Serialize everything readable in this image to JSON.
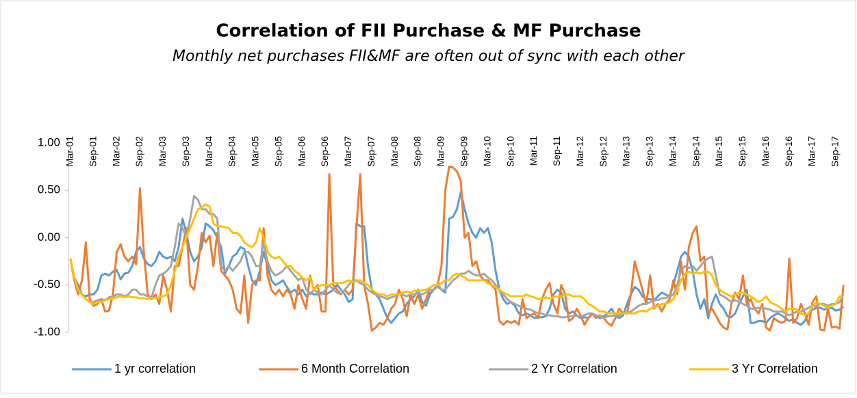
{
  "chart_data": {
    "type": "line",
    "title": "Correlation of FII Purchase & MF Purchase",
    "subtitle": "Monthly net purchases FII&MF are often out of sync with each other",
    "categories": [
      "Mar-01",
      null,
      null,
      null,
      null,
      null,
      "Sep-01",
      null,
      null,
      null,
      null,
      null,
      "Mar-02",
      null,
      null,
      null,
      null,
      null,
      "Sep-02",
      null,
      null,
      null,
      null,
      null,
      "Mar-03",
      null,
      null,
      null,
      null,
      null,
      "Sep-03",
      null,
      null,
      null,
      null,
      null,
      "Mar-04",
      null,
      null,
      null,
      null,
      null,
      "Sep-04",
      null,
      null,
      null,
      null,
      null,
      "Mar-05",
      null,
      null,
      null,
      null,
      null,
      "Sep-05",
      null,
      null,
      null,
      null,
      null,
      "Mar-06",
      null,
      null,
      null,
      null,
      null,
      "Sep-06",
      null,
      null,
      null,
      null,
      null,
      "Mar-07",
      null,
      null,
      null,
      null,
      null,
      "Sep-07",
      null,
      null,
      null,
      null,
      null,
      "Mar-08",
      null,
      null,
      null,
      null,
      null,
      "Sep-08",
      null,
      null,
      null,
      null,
      null,
      "Mar-09",
      null,
      null,
      null,
      null,
      null,
      "Sep-09",
      null,
      null,
      null,
      null,
      null,
      "Mar-10",
      null,
      null,
      null,
      null,
      null,
      "Sep-10",
      null,
      null,
      null,
      null,
      null,
      "Mar-11",
      null,
      null,
      null,
      null,
      null,
      "Sep-11",
      null,
      null,
      null,
      null,
      null,
      "Mar-12",
      null,
      null,
      null,
      null,
      null,
      "Sep-12",
      null,
      null,
      null,
      null,
      null,
      "Mar-13",
      null,
      null,
      null,
      null,
      null,
      "Sep-13",
      null,
      null,
      null,
      null,
      null,
      "Mar-14",
      null,
      null,
      null,
      null,
      null,
      "Sep-14",
      null,
      null,
      null,
      null,
      null,
      "Mar-15",
      null,
      null,
      null,
      null,
      null,
      "Sep-15",
      null,
      null,
      null,
      null,
      null,
      "Mar-16",
      null,
      null,
      null,
      null,
      null,
      "Sep-16",
      null,
      null,
      null,
      null,
      null,
      "Mar-17",
      null,
      null,
      null,
      null,
      null,
      "Sep-17",
      null,
      null
    ],
    "series": [
      {
        "name": "1 yr correlation",
        "color": "#5b9bd5",
        "values": [
          -0.22,
          -0.42,
          -0.5,
          -0.6,
          -0.62,
          -0.6,
          -0.6,
          -0.55,
          -0.4,
          -0.38,
          -0.4,
          -0.36,
          -0.34,
          -0.44,
          -0.38,
          -0.37,
          -0.3,
          -0.15,
          -0.1,
          -0.22,
          -0.28,
          -0.3,
          -0.25,
          -0.15,
          -0.2,
          -0.22,
          -0.2,
          -0.25,
          -0.1,
          0.2,
          0.05,
          -0.15,
          -0.25,
          -0.2,
          -0.1,
          0.15,
          0.12,
          0.08,
          0.0,
          -0.1,
          -0.38,
          -0.3,
          -0.2,
          -0.17,
          -0.1,
          -0.12,
          -0.3,
          -0.45,
          -0.5,
          -0.35,
          -0.15,
          -0.3,
          -0.45,
          -0.5,
          -0.48,
          -0.45,
          -0.52,
          -0.58,
          -0.55,
          -0.6,
          -0.55,
          -0.62,
          -0.58,
          -0.6,
          -0.6,
          -0.58,
          -0.6,
          -0.58,
          -0.55,
          -0.5,
          -0.55,
          -0.6,
          -0.68,
          -0.65,
          0.15,
          0.12,
          0.12,
          -0.3,
          -0.55,
          -0.6,
          -0.65,
          -0.75,
          -0.85,
          -0.9,
          -0.85,
          -0.8,
          -0.78,
          -0.7,
          -0.65,
          -0.62,
          -0.55,
          -0.68,
          -0.72,
          -0.6,
          -0.55,
          -0.5,
          -0.55,
          -0.58,
          0.2,
          0.22,
          0.3,
          0.48,
          0.3,
          0.15,
          0.05,
          0.0,
          0.1,
          0.05,
          0.1,
          -0.05,
          -0.35,
          -0.55,
          -0.65,
          -0.7,
          -0.68,
          -0.72,
          -0.8,
          -0.82,
          -0.8,
          -0.82,
          -0.85,
          -0.84,
          -0.84,
          -0.83,
          -0.75,
          -0.6,
          -0.55,
          -0.58,
          -0.75,
          -0.8,
          -0.78,
          -0.82,
          -0.85,
          -0.84,
          -0.85,
          -0.8,
          -0.82,
          -0.85,
          -0.83,
          -0.8,
          -0.75,
          -0.82,
          -0.85,
          -0.82,
          -0.7,
          -0.6,
          -0.52,
          -0.55,
          -0.62,
          -0.65,
          -0.65,
          -0.66,
          -0.62,
          -0.58,
          -0.6,
          -0.62,
          -0.5,
          -0.35,
          -0.2,
          -0.15,
          -0.2,
          -0.35,
          -0.6,
          -0.75,
          -0.65,
          -0.85,
          -0.7,
          -0.6,
          -0.7,
          -0.75,
          -0.83,
          -0.84,
          -0.8,
          -0.7,
          -0.62,
          -0.55,
          -0.9,
          -0.9,
          -0.88,
          -0.88,
          -0.9,
          -0.85,
          -0.82,
          -0.8,
          -0.82,
          -0.85,
          -0.88,
          -0.86,
          -0.9,
          -0.92,
          -0.88,
          -0.8,
          -0.76,
          -0.74,
          -0.74,
          -0.76,
          -0.75,
          -0.74,
          -0.77,
          -0.76,
          -0.73
        ]
      },
      {
        "name": "6 Month Correlation",
        "color": "#ed7d31",
        "values": [
          -0.22,
          -0.45,
          -0.6,
          -0.45,
          -0.05,
          -0.65,
          -0.72,
          -0.7,
          -0.65,
          -0.78,
          -0.77,
          -0.6,
          -0.15,
          -0.07,
          -0.2,
          -0.25,
          -0.2,
          -0.28,
          0.52,
          -0.15,
          -0.6,
          -0.65,
          -0.6,
          -0.7,
          -0.4,
          -0.55,
          -0.78,
          -0.3,
          -0.3,
          -0.1,
          0.1,
          -0.5,
          -0.55,
          -0.3,
          0.05,
          -0.05,
          0.02,
          -0.3,
          0.05,
          -0.35,
          -0.4,
          -0.45,
          -0.55,
          -0.75,
          -0.8,
          -0.4,
          -0.9,
          -0.5,
          -0.45,
          -0.45,
          0.1,
          -0.4,
          -0.55,
          -0.6,
          -0.55,
          -0.62,
          -0.55,
          -0.6,
          -0.75,
          -0.5,
          -0.65,
          -0.75,
          -0.4,
          -0.55,
          -0.5,
          -0.78,
          -0.78,
          0.67,
          -0.5,
          -0.55,
          -0.6,
          -0.55,
          -0.6,
          -0.55,
          0.1,
          0.67,
          -0.5,
          -0.7,
          -0.98,
          -0.95,
          -0.9,
          -0.92,
          -0.85,
          -0.75,
          -0.7,
          -0.55,
          -0.65,
          -0.83,
          -0.6,
          -0.7,
          -0.6,
          -0.75,
          -0.65,
          -0.55,
          -0.55,
          -0.5,
          -0.3,
          0.5,
          0.75,
          0.74,
          0.7,
          0.6,
          0.0,
          0.05,
          -0.3,
          -0.25,
          -0.4,
          -0.45,
          -0.45,
          -0.5,
          -0.55,
          -0.88,
          -0.92,
          -0.88,
          -0.9,
          -0.88,
          -0.92,
          -0.65,
          -0.85,
          -0.82,
          -0.8,
          -0.85,
          -0.65,
          -0.55,
          -0.48,
          -0.7,
          -0.8,
          -0.5,
          -0.6,
          -0.88,
          -0.85,
          -0.75,
          -0.82,
          -0.92,
          -0.85,
          -0.8,
          -0.85,
          -0.82,
          -0.85,
          -0.9,
          -0.93,
          -0.85,
          -0.75,
          -0.8,
          -0.8,
          -0.6,
          -0.25,
          -0.4,
          -0.55,
          -0.7,
          -0.4,
          -0.75,
          -0.7,
          -0.78,
          -0.7,
          -0.65,
          -0.45,
          -0.6,
          -0.25,
          -0.55,
          -0.1,
          0.05,
          0.12,
          -0.25,
          -0.2,
          -0.8,
          -0.75,
          -0.82,
          -0.9,
          -0.95,
          -0.97,
          -0.7,
          -0.58,
          -0.65,
          -0.4,
          -0.7,
          -0.65,
          -0.75,
          -0.8,
          -0.7,
          -0.95,
          -0.98,
          -0.85,
          -0.88,
          -0.9,
          -0.88,
          -0.22,
          -0.9,
          -0.85,
          -0.7,
          -0.8,
          -0.92,
          -0.68,
          -0.62,
          -0.97,
          -0.98,
          -0.75,
          -0.95,
          -0.94,
          -0.96,
          -0.5
        ]
      },
      {
        "name": "2 Yr Correlation",
        "color": "#a5a5a5",
        "values": [
          -0.22,
          -0.42,
          -0.55,
          -0.6,
          -0.65,
          -0.68,
          -0.68,
          -0.66,
          -0.65,
          -0.66,
          -0.63,
          -0.62,
          -0.6,
          -0.6,
          -0.62,
          -0.6,
          -0.55,
          -0.55,
          -0.6,
          -0.6,
          -0.62,
          -0.63,
          -0.5,
          -0.4,
          -0.38,
          -0.35,
          -0.3,
          -0.1,
          0.15,
          0.1,
          0.0,
          0.2,
          0.44,
          0.4,
          0.3,
          0.3,
          0.25,
          0.25,
          0.2,
          -0.3,
          -0.35,
          -0.3,
          -0.35,
          -0.3,
          -0.25,
          -0.15,
          -0.15,
          -0.2,
          -0.3,
          -0.3,
          -0.05,
          -0.25,
          -0.35,
          -0.4,
          -0.38,
          -0.35,
          -0.3,
          -0.35,
          -0.4,
          -0.45,
          -0.42,
          -0.55,
          -0.6,
          -0.55,
          -0.58,
          -0.6,
          -0.55,
          -0.5,
          -0.55,
          -0.58,
          -0.6,
          -0.55,
          -0.5,
          -0.45,
          -0.45,
          -0.48,
          -0.5,
          -0.55,
          -0.58,
          -0.6,
          -0.62,
          -0.63,
          -0.65,
          -0.63,
          -0.62,
          -0.6,
          -0.6,
          -0.62,
          -0.6,
          -0.6,
          -0.58,
          -0.6,
          -0.58,
          -0.55,
          -0.55,
          -0.52,
          -0.55,
          -0.55,
          -0.5,
          -0.45,
          -0.42,
          -0.38,
          -0.38,
          -0.35,
          -0.38,
          -0.4,
          -0.4,
          -0.38,
          -0.42,
          -0.45,
          -0.5,
          -0.55,
          -0.6,
          -0.65,
          -0.68,
          -0.7,
          -0.72,
          -0.74,
          -0.75,
          -0.76,
          -0.78,
          -0.8,
          -0.8,
          -0.82,
          -0.82,
          -0.83,
          -0.83,
          -0.84,
          -0.84,
          -0.83,
          -0.83,
          -0.83,
          -0.83,
          -0.82,
          -0.8,
          -0.8,
          -0.82,
          -0.83,
          -0.85,
          -0.83,
          -0.83,
          -0.82,
          -0.82,
          -0.8,
          -0.8,
          -0.78,
          -0.75,
          -0.72,
          -0.7,
          -0.7,
          -0.68,
          -0.66,
          -0.66,
          -0.64,
          -0.64,
          -0.62,
          -0.6,
          -0.5,
          -0.35,
          -0.3,
          -0.32,
          -0.3,
          -0.35,
          -0.3,
          -0.25,
          -0.22,
          -0.2,
          -0.4,
          -0.6,
          -0.62,
          -0.65,
          -0.68,
          -0.66,
          -0.68,
          -0.7,
          -0.72,
          -0.75,
          -0.75,
          -0.74,
          -0.74,
          -0.75,
          -0.76,
          -0.78,
          -0.78,
          -0.78,
          -0.8,
          -0.82,
          -0.8,
          -0.78,
          -0.78,
          -0.76,
          -0.74,
          -0.72,
          -0.72,
          -0.7,
          -0.7,
          -0.72,
          -0.7,
          -0.7,
          -0.68,
          -0.6
        ]
      },
      {
        "name": "3 Yr Correlation",
        "color": "#ffc000",
        "values": [
          -0.22,
          -0.42,
          -0.55,
          -0.6,
          -0.65,
          -0.68,
          -0.7,
          -0.68,
          -0.68,
          -0.66,
          -0.65,
          -0.64,
          -0.63,
          -0.62,
          -0.63,
          -0.62,
          -0.63,
          -0.63,
          -0.64,
          -0.64,
          -0.65,
          -0.64,
          -0.64,
          -0.63,
          -0.62,
          -0.6,
          -0.5,
          -0.35,
          -0.2,
          -0.1,
          0.0,
          0.1,
          0.2,
          0.3,
          0.32,
          0.35,
          0.33,
          0.15,
          0.12,
          0.12,
          0.11,
          0.1,
          0.05,
          0.05,
          0.02,
          -0.05,
          -0.08,
          -0.1,
          -0.05,
          0.1,
          0.0,
          -0.15,
          -0.2,
          -0.22,
          -0.2,
          -0.25,
          -0.3,
          -0.3,
          -0.35,
          -0.38,
          -0.42,
          -0.45,
          -0.42,
          -0.55,
          -0.52,
          -0.5,
          -0.5,
          -0.5,
          -0.48,
          -0.48,
          -0.48,
          -0.47,
          -0.45,
          -0.47,
          -0.46,
          -0.45,
          -0.48,
          -0.5,
          -0.55,
          -0.58,
          -0.6,
          -0.6,
          -0.62,
          -0.6,
          -0.6,
          -0.6,
          -0.58,
          -0.57,
          -0.58,
          -0.56,
          -0.56,
          -0.56,
          -0.55,
          -0.53,
          -0.5,
          -0.5,
          -0.48,
          -0.45,
          -0.45,
          -0.4,
          -0.38,
          -0.4,
          -0.42,
          -0.45,
          -0.45,
          -0.45,
          -0.45,
          -0.45,
          -0.48,
          -0.5,
          -0.52,
          -0.55,
          -0.58,
          -0.6,
          -0.62,
          -0.62,
          -0.62,
          -0.62,
          -0.6,
          -0.62,
          -0.63,
          -0.65,
          -0.64,
          -0.63,
          -0.64,
          -0.63,
          -0.62,
          -0.62,
          -0.6,
          -0.6,
          -0.62,
          -0.62,
          -0.62,
          -0.65,
          -0.7,
          -0.72,
          -0.75,
          -0.78,
          -0.78,
          -0.8,
          -0.8,
          -0.8,
          -0.8,
          -0.8,
          -0.8,
          -0.8,
          -0.8,
          -0.78,
          -0.77,
          -0.78,
          -0.75,
          -0.74,
          -0.72,
          -0.7,
          -0.7,
          -0.68,
          -0.65,
          -0.55,
          -0.45,
          -0.38,
          -0.36,
          -0.38,
          -0.37,
          -0.38,
          -0.36,
          -0.36,
          -0.4,
          -0.5,
          -0.55,
          -0.58,
          -0.6,
          -0.62,
          -0.6,
          -0.58,
          -0.58,
          -0.6,
          -0.62,
          -0.65,
          -0.68,
          -0.66,
          -0.62,
          -0.68,
          -0.7,
          -0.72,
          -0.75,
          -0.78,
          -0.75,
          -0.75,
          -0.76,
          -0.8,
          -0.82,
          -0.8,
          -0.72,
          -0.68,
          -0.7,
          -0.72,
          -0.74,
          -0.72,
          -0.7,
          -0.62,
          -0.62
        ]
      }
    ],
    "ylim": [
      -1,
      1
    ],
    "yticks": [
      {
        "value": -1,
        "label": "-1.00"
      },
      {
        "value": -0.5,
        "label": "-0.50"
      },
      {
        "value": 0,
        "label": "0.00"
      },
      {
        "value": 0.5,
        "label": "0.50"
      },
      {
        "value": 1,
        "label": "1.00"
      }
    ],
    "grid": false,
    "legend": "bottom"
  }
}
